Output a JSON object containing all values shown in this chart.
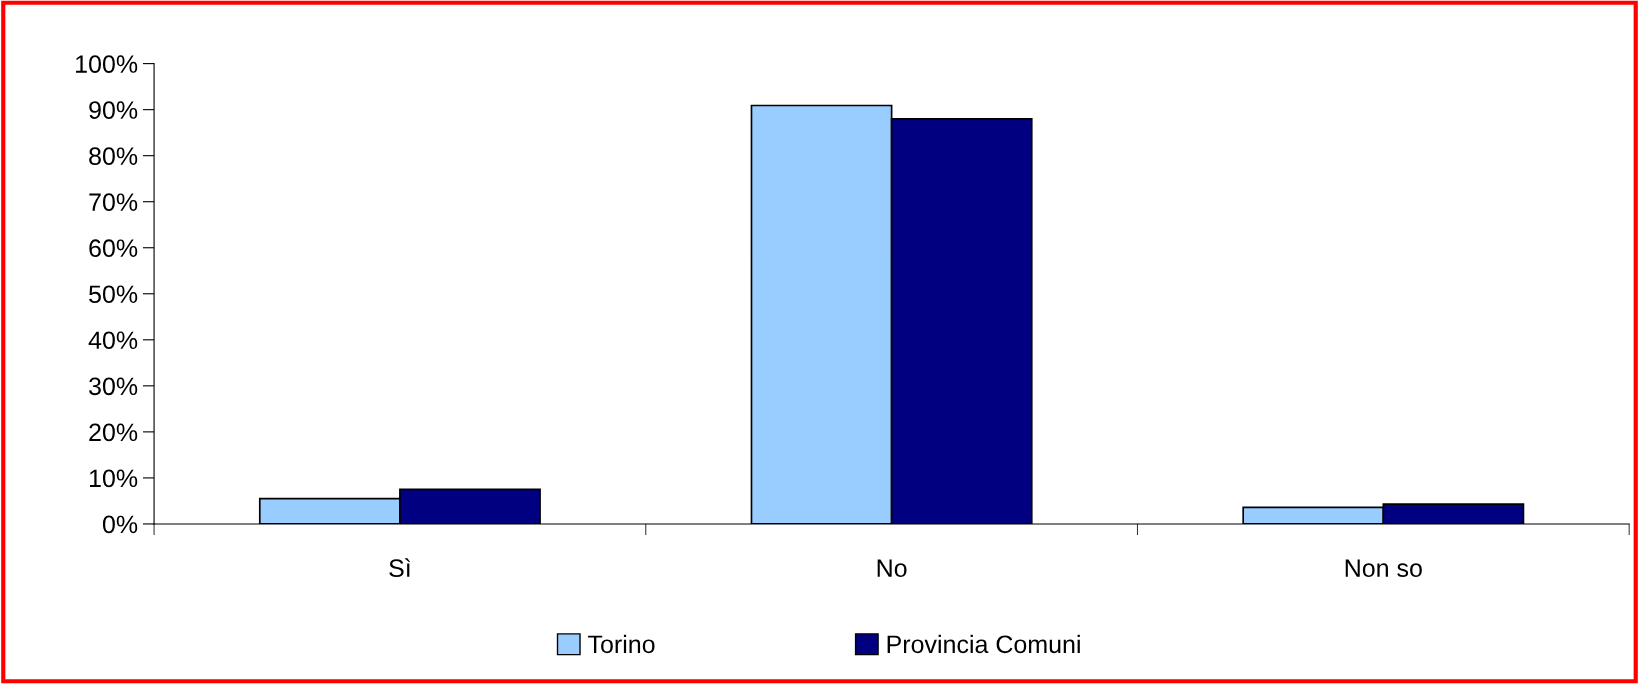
{
  "chart_data": {
    "type": "bar",
    "categories": [
      "Sì",
      "No",
      "Non so"
    ],
    "series": [
      {
        "name": "Torino",
        "color": "#99ccff",
        "values": [
          5.5,
          90.9,
          3.6
        ]
      },
      {
        "name": "Provincia Comuni",
        "color": "#000080",
        "values": [
          7.5,
          88.0,
          4.3
        ]
      }
    ],
    "ylim": [
      0,
      100
    ],
    "yticks": [
      {
        "value": 0,
        "label": "0%"
      },
      {
        "value": 10,
        "label": "10%"
      },
      {
        "value": 20,
        "label": "20%"
      },
      {
        "value": 30,
        "label": "30%"
      },
      {
        "value": 40,
        "label": "40%"
      },
      {
        "value": 50,
        "label": "50%"
      },
      {
        "value": 60,
        "label": "60%"
      },
      {
        "value": 70,
        "label": "70%"
      },
      {
        "value": 80,
        "label": "80%"
      },
      {
        "value": 90,
        "label": "90%"
      },
      {
        "value": 100,
        "label": "100%"
      }
    ],
    "grid": false,
    "legend": "bottom"
  }
}
